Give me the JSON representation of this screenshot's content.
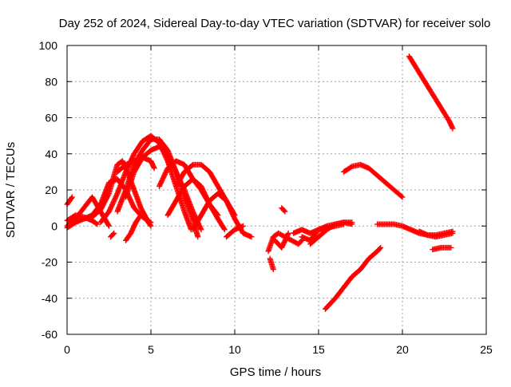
{
  "chart_data": {
    "type": "scatter",
    "title": "Day 252 of 2024, Sidereal Day-to-day VTEC variation (SDTVAR) for receiver solo",
    "xlabel": "GPS time / hours",
    "ylabel": "SDTVAR / TECUs",
    "xlim": [
      0,
      25
    ],
    "ylim": [
      -60,
      100
    ],
    "xticks": [
      0,
      5,
      10,
      15,
      20,
      25
    ],
    "yticks": [
      -60,
      -40,
      -20,
      0,
      20,
      40,
      60,
      80,
      100
    ],
    "grid": true,
    "marker": "+",
    "color": "#ff0000",
    "series": [
      {
        "points": [
          [
            0,
            0
          ],
          [
            0.5,
            4
          ],
          [
            1,
            10
          ],
          [
            1.5,
            16
          ],
          [
            2,
            8
          ],
          [
            2.5,
            0
          ]
        ]
      },
      {
        "points": [
          [
            0,
            12
          ],
          [
            0.3,
            16
          ]
        ]
      },
      {
        "points": [
          [
            0,
            3
          ],
          [
            0.5,
            6
          ],
          [
            1,
            5
          ],
          [
            1.5,
            3
          ],
          [
            1.8,
            1
          ]
        ]
      },
      {
        "points": [
          [
            0,
            -1
          ],
          [
            0.5,
            2
          ],
          [
            1,
            4
          ],
          [
            1.5,
            5
          ],
          [
            2,
            9
          ],
          [
            2.5,
            18
          ],
          [
            2.8,
            28
          ],
          [
            3,
            34
          ],
          [
            3.3,
            36
          ],
          [
            3.6,
            30
          ],
          [
            4,
            20
          ],
          [
            4.4,
            10
          ],
          [
            4.8,
            3
          ]
        ]
      },
      {
        "points": [
          [
            1,
            4
          ],
          [
            1.5,
            6
          ],
          [
            2,
            12
          ],
          [
            2.5,
            24
          ],
          [
            3,
            26
          ],
          [
            3.5,
            20
          ],
          [
            4,
            10
          ],
          [
            4.5,
            5
          ],
          [
            5,
            2
          ]
        ]
      },
      {
        "points": [
          [
            2,
            2
          ],
          [
            2.5,
            8
          ],
          [
            3,
            18
          ],
          [
            3.5,
            30
          ],
          [
            4,
            40
          ],
          [
            4.5,
            47
          ],
          [
            5,
            50
          ],
          [
            5.5,
            46
          ],
          [
            6,
            36
          ],
          [
            6.5,
            22
          ],
          [
            7,
            8
          ],
          [
            7.4,
            -2
          ]
        ]
      },
      {
        "points": [
          [
            3,
            8
          ],
          [
            3.5,
            20
          ],
          [
            4,
            34
          ],
          [
            4.5,
            42
          ],
          [
            5,
            48
          ],
          [
            5.5,
            48
          ],
          [
            6,
            42
          ],
          [
            6.5,
            30
          ],
          [
            7,
            16
          ],
          [
            7.5,
            4
          ],
          [
            7.8,
            -6
          ]
        ]
      },
      {
        "points": [
          [
            3.5,
            16
          ],
          [
            4,
            30
          ],
          [
            4.5,
            38
          ],
          [
            5,
            42
          ],
          [
            5.5,
            44
          ],
          [
            6,
            40
          ],
          [
            6.5,
            30
          ],
          [
            7,
            20
          ],
          [
            7.5,
            8
          ],
          [
            8,
            -2
          ]
        ]
      },
      {
        "points": [
          [
            3,
            30
          ],
          [
            3.5,
            34
          ],
          [
            4,
            36
          ],
          [
            4.5,
            38
          ],
          [
            5,
            36
          ],
          [
            5.2,
            32
          ]
        ]
      },
      {
        "points": [
          [
            2.6,
            -6
          ],
          [
            2.8,
            -4
          ]
        ]
      },
      {
        "points": [
          [
            3.5,
            -8
          ],
          [
            3.8,
            -4
          ],
          [
            4.1,
            2
          ],
          [
            4.4,
            6
          ],
          [
            4.7,
            4
          ],
          [
            5,
            0
          ]
        ]
      },
      {
        "points": [
          [
            5.5,
            22
          ],
          [
            6,
            32
          ],
          [
            6.5,
            36
          ],
          [
            7,
            34
          ],
          [
            7.5,
            26
          ],
          [
            8,
            20
          ],
          [
            8.5,
            12
          ],
          [
            9,
            6
          ]
        ]
      },
      {
        "points": [
          [
            6.5,
            22
          ],
          [
            7,
            30
          ],
          [
            7.5,
            34
          ],
          [
            8,
            34
          ],
          [
            8.5,
            30
          ],
          [
            9,
            22
          ],
          [
            9.5,
            14
          ],
          [
            10,
            6
          ]
        ]
      },
      {
        "points": [
          [
            6,
            6
          ],
          [
            6.5,
            14
          ],
          [
            7,
            22
          ],
          [
            7.5,
            26
          ],
          [
            8,
            22
          ],
          [
            8.5,
            12
          ],
          [
            9,
            4
          ],
          [
            9.4,
            -2
          ]
        ]
      },
      {
        "points": [
          [
            7.5,
            -2
          ],
          [
            8,
            6
          ],
          [
            8.5,
            14
          ],
          [
            9,
            18
          ],
          [
            9.5,
            14
          ],
          [
            10,
            4
          ],
          [
            10.5,
            -4
          ],
          [
            11,
            -6
          ]
        ]
      },
      {
        "points": [
          [
            9.5,
            -6
          ],
          [
            10,
            -2
          ],
          [
            10.5,
            0
          ]
        ]
      },
      {
        "points": [
          [
            12,
            -14
          ],
          [
            12.3,
            -6
          ],
          [
            12.6,
            -4
          ],
          [
            13,
            -6
          ],
          [
            13.4,
            -8
          ],
          [
            13.8,
            -10
          ],
          [
            14,
            -8
          ]
        ]
      },
      {
        "points": [
          [
            12.1,
            -18
          ],
          [
            12.3,
            -24
          ]
        ]
      },
      {
        "points": [
          [
            12.4,
            -8
          ],
          [
            12.8,
            -12
          ],
          [
            13.2,
            -4
          ]
        ]
      },
      {
        "points": [
          [
            12.8,
            10
          ],
          [
            13,
            8
          ]
        ]
      },
      {
        "points": [
          [
            13.5,
            -4
          ],
          [
            14,
            -2
          ],
          [
            14.5,
            -4
          ],
          [
            15,
            -2
          ],
          [
            15.5,
            -1
          ],
          [
            16,
            0
          ],
          [
            16.5,
            1
          ]
        ]
      },
      {
        "points": [
          [
            14,
            -6
          ],
          [
            14.5,
            -8
          ],
          [
            15,
            -2
          ],
          [
            15.5,
            0
          ],
          [
            16,
            1
          ],
          [
            16.5,
            2
          ],
          [
            17,
            2
          ]
        ]
      },
      {
        "points": [
          [
            14.5,
            -10
          ],
          [
            15,
            -6
          ],
          [
            15.5,
            -2
          ],
          [
            16,
            1
          ],
          [
            16.5,
            2
          ],
          [
            17,
            1
          ]
        ]
      },
      {
        "points": [
          [
            15.4,
            -46
          ],
          [
            16,
            -40
          ],
          [
            16.5,
            -34
          ],
          [
            17,
            -28
          ],
          [
            17.5,
            -24
          ],
          [
            18,
            -18
          ],
          [
            18.5,
            -14
          ],
          [
            18.7,
            -12
          ]
        ]
      },
      {
        "points": [
          [
            16.5,
            30
          ],
          [
            17,
            33
          ],
          [
            17.5,
            34
          ],
          [
            18,
            32
          ],
          [
            18.5,
            28
          ],
          [
            19,
            24
          ],
          [
            19.5,
            20
          ],
          [
            20,
            16
          ]
        ]
      },
      {
        "points": [
          [
            18.5,
            1
          ],
          [
            19,
            1
          ],
          [
            19.5,
            1
          ],
          [
            20,
            0
          ],
          [
            20.5,
            -2
          ],
          [
            21,
            -4
          ],
          [
            21.5,
            -5
          ],
          [
            22,
            -5
          ],
          [
            22.5,
            -4
          ],
          [
            23,
            -3
          ]
        ]
      },
      {
        "points": [
          [
            21,
            -3
          ],
          [
            21.5,
            -5
          ],
          [
            22,
            -6
          ],
          [
            22.5,
            -5
          ],
          [
            23,
            -4
          ]
        ]
      },
      {
        "points": [
          [
            21.8,
            -13
          ],
          [
            22.3,
            -12
          ],
          [
            22.9,
            -12
          ]
        ]
      },
      {
        "points": [
          [
            20.4,
            94
          ],
          [
            20.8,
            88
          ],
          [
            21.2,
            82
          ],
          [
            21.6,
            76
          ],
          [
            22,
            70
          ],
          [
            22.4,
            64
          ],
          [
            22.8,
            58
          ],
          [
            23,
            54
          ]
        ]
      }
    ]
  }
}
